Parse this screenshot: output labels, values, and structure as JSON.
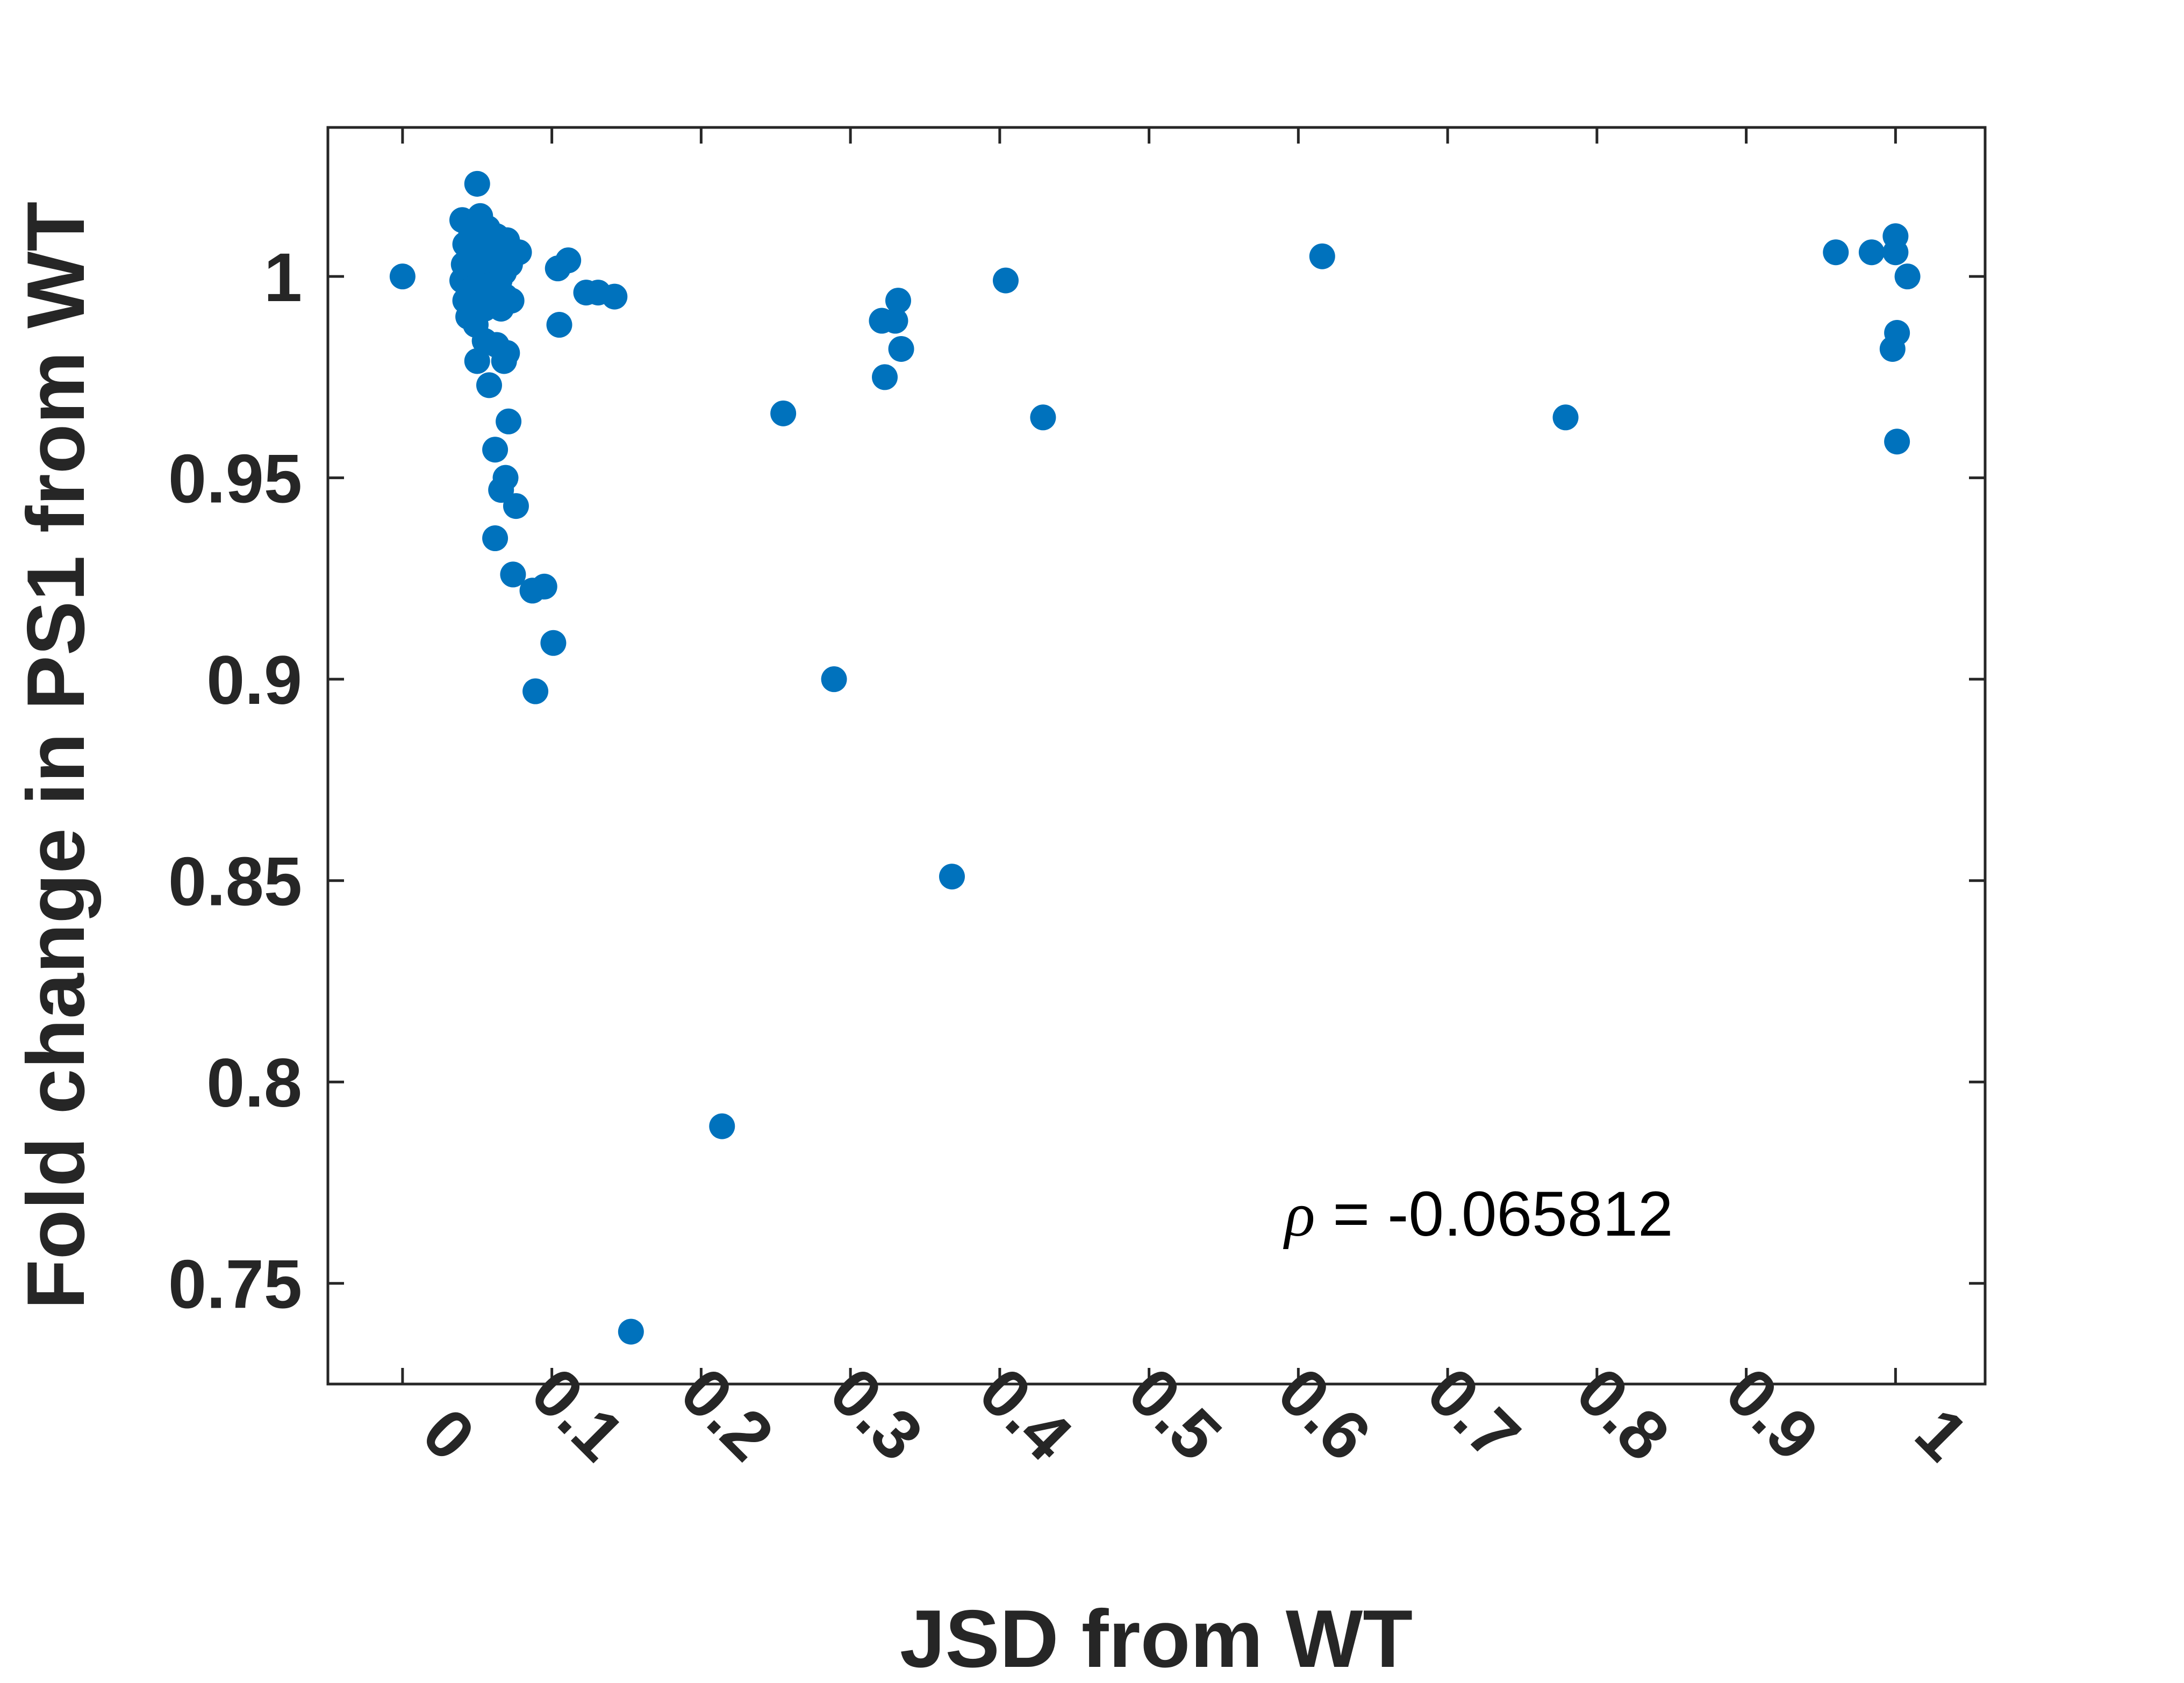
{
  "chart_data": {
    "type": "scatter",
    "title": "",
    "xlabel": "JSD from WT",
    "ylabel": "Fold change in PS1 from WT",
    "xlim": [
      -0.05,
      1.06
    ],
    "ylim": [
      0.725,
      1.037
    ],
    "xticks": [
      0,
      0.1,
      0.2,
      0.3,
      0.4,
      0.5,
      0.6,
      0.7,
      0.8,
      0.9,
      1
    ],
    "xtick_labels": [
      "0",
      "0.1",
      "0.2",
      "0.3",
      "0.4",
      "0.5",
      "0.6",
      "0.7",
      "0.8",
      "0.9",
      "1"
    ],
    "yticks": [
      0.75,
      0.8,
      0.85,
      0.9,
      0.95,
      1
    ],
    "ytick_labels": [
      "0.75",
      "0.8",
      "0.85",
      "0.9",
      "0.95",
      "1"
    ],
    "grid": false,
    "marker_color": "#0072BD",
    "annotation": {
      "symbol": "ρ",
      "text": " = -0.065812"
    },
    "points": [
      {
        "x": 0.0,
        "y": 1.0
      },
      {
        "x": 0.04,
        "y": 1.014
      },
      {
        "x": 0.042,
        "y": 1.008
      },
      {
        "x": 0.041,
        "y": 1.003
      },
      {
        "x": 0.04,
        "y": 0.999
      },
      {
        "x": 0.042,
        "y": 0.994
      },
      {
        "x": 0.044,
        "y": 0.99
      },
      {
        "x": 0.046,
        "y": 1.011
      },
      {
        "x": 0.048,
        "y": 1.005
      },
      {
        "x": 0.047,
        "y": 0.997
      },
      {
        "x": 0.049,
        "y": 0.988
      },
      {
        "x": 0.05,
        "y": 1.023
      },
      {
        "x": 0.052,
        "y": 1.015
      },
      {
        "x": 0.053,
        "y": 1.009
      },
      {
        "x": 0.052,
        "y": 1.001
      },
      {
        "x": 0.054,
        "y": 0.996
      },
      {
        "x": 0.055,
        "y": 0.992
      },
      {
        "x": 0.057,
        "y": 1.012
      },
      {
        "x": 0.058,
        "y": 1.006
      },
      {
        "x": 0.056,
        "y": 1.002
      },
      {
        "x": 0.059,
        "y": 0.998
      },
      {
        "x": 0.06,
        "y": 1.008
      },
      {
        "x": 0.061,
        "y": 1.003
      },
      {
        "x": 0.062,
        "y": 0.997
      },
      {
        "x": 0.063,
        "y": 1.01
      },
      {
        "x": 0.064,
        "y": 1.004
      },
      {
        "x": 0.065,
        "y": 0.999
      },
      {
        "x": 0.066,
        "y": 0.992
      },
      {
        "x": 0.067,
        "y": 1.006
      },
      {
        "x": 0.068,
        "y": 1.001
      },
      {
        "x": 0.069,
        "y": 0.995
      },
      {
        "x": 0.07,
        "y": 1.009
      },
      {
        "x": 0.072,
        "y": 1.003
      },
      {
        "x": 0.073,
        "y": 0.994
      },
      {
        "x": 0.078,
        "y": 1.006
      },
      {
        "x": 0.05,
        "y": 1.002
      },
      {
        "x": 0.051,
        "y": 0.998
      },
      {
        "x": 0.055,
        "y": 1.004
      },
      {
        "x": 0.058,
        "y": 0.993
      },
      {
        "x": 0.05,
        "y": 0.979
      },
      {
        "x": 0.055,
        "y": 0.984
      },
      {
        "x": 0.058,
        "y": 0.973
      },
      {
        "x": 0.063,
        "y": 0.983
      },
      {
        "x": 0.068,
        "y": 0.979
      },
      {
        "x": 0.07,
        "y": 0.981
      },
      {
        "x": 0.071,
        "y": 0.964
      },
      {
        "x": 0.062,
        "y": 0.957
      },
      {
        "x": 0.069,
        "y": 0.95
      },
      {
        "x": 0.066,
        "y": 0.947
      },
      {
        "x": 0.076,
        "y": 0.943
      },
      {
        "x": 0.062,
        "y": 0.935
      },
      {
        "x": 0.074,
        "y": 0.926
      },
      {
        "x": 0.087,
        "y": 0.922
      },
      {
        "x": 0.095,
        "y": 0.923
      },
      {
        "x": 0.101,
        "y": 0.909
      },
      {
        "x": 0.089,
        "y": 0.897
      },
      {
        "x": 0.104,
        "y": 1.002
      },
      {
        "x": 0.111,
        "y": 1.004
      },
      {
        "x": 0.105,
        "y": 0.988
      },
      {
        "x": 0.123,
        "y": 0.996
      },
      {
        "x": 0.131,
        "y": 0.996
      },
      {
        "x": 0.142,
        "y": 0.995
      },
      {
        "x": 0.153,
        "y": 0.738
      },
      {
        "x": 0.214,
        "y": 0.789
      },
      {
        "x": 0.255,
        "y": 0.966
      },
      {
        "x": 0.289,
        "y": 0.9
      },
      {
        "x": 0.321,
        "y": 0.989
      },
      {
        "x": 0.323,
        "y": 0.975
      },
      {
        "x": 0.33,
        "y": 0.989
      },
      {
        "x": 0.332,
        "y": 0.994
      },
      {
        "x": 0.334,
        "y": 0.982
      },
      {
        "x": 0.368,
        "y": 0.851
      },
      {
        "x": 0.404,
        "y": 0.999
      },
      {
        "x": 0.429,
        "y": 0.965
      },
      {
        "x": 0.616,
        "y": 1.005
      },
      {
        "x": 0.779,
        "y": 0.965
      },
      {
        "x": 0.96,
        "y": 1.006
      },
      {
        "x": 0.984,
        "y": 1.006
      },
      {
        "x": 0.998,
        "y": 0.982
      },
      {
        "x": 1.0,
        "y": 1.01
      },
      {
        "x": 1.0,
        "y": 1.006
      },
      {
        "x": 1.001,
        "y": 0.986
      },
      {
        "x": 1.001,
        "y": 0.959
      },
      {
        "x": 1.008,
        "y": 1.0
      }
    ]
  }
}
